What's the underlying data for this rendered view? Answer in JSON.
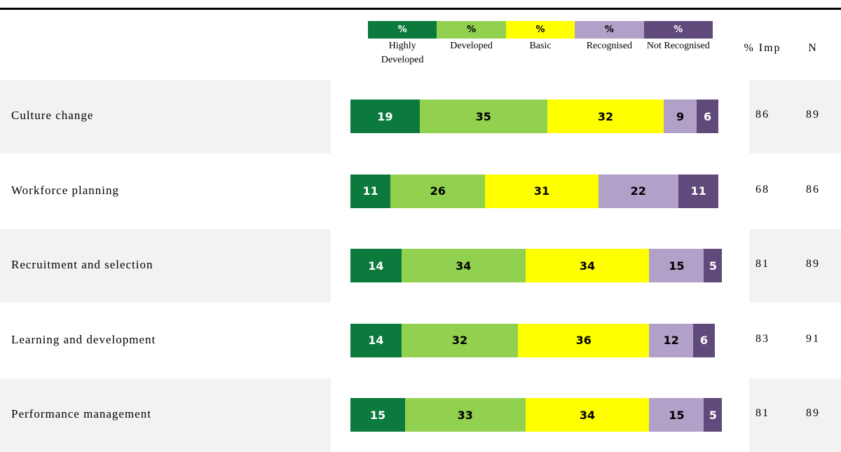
{
  "chart_data": {
    "type": "bar",
    "orientation": "horizontal",
    "stacked": true,
    "legend_unit": "%",
    "categories": [
      "Culture change",
      "Workforce planning",
      "Recruitment and selection",
      "Learning and development",
      "Performance management"
    ],
    "series": [
      {
        "name": "Highly Developed",
        "color": "#0b7a3c",
        "values": [
          19,
          11,
          14,
          14,
          15
        ]
      },
      {
        "name": "Developed",
        "color": "#92d050",
        "values": [
          35,
          26,
          34,
          32,
          33
        ]
      },
      {
        "name": "Basic",
        "color": "#ffff00",
        "values": [
          32,
          31,
          34,
          36,
          34
        ]
      },
      {
        "name": "Recognised",
        "color": "#b1a0c7",
        "values": [
          9,
          22,
          15,
          12,
          15
        ]
      },
      {
        "name": "Not Recognised",
        "color": "#604a7b",
        "values": [
          6,
          11,
          5,
          6,
          5
        ]
      }
    ],
    "columns": [
      {
        "header": "% Imp",
        "values": [
          86,
          68,
          81,
          83,
          81
        ]
      },
      {
        "header": "N",
        "values": [
          89,
          86,
          89,
          91,
          89
        ]
      }
    ]
  }
}
